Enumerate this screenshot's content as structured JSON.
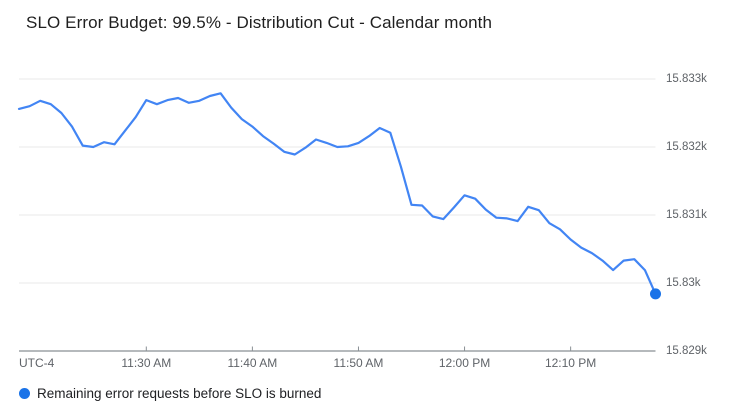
{
  "title": "SLO Error Budget: 99.5% - Distribution Cut - Calendar month",
  "legend": {
    "label": "Remaining error requests before SLO is burned",
    "dot_color": "#1a73e8"
  },
  "colors": {
    "line": "#4285f4",
    "endpoint_dot": "#1a73e8",
    "gridline": "#e9e9e9",
    "axis": "#898f94",
    "tick_label": "#5f6368",
    "title_text": "#1f1f1f"
  },
  "chart_data": {
    "type": "line",
    "title": "SLO Error Budget: 99.5% - Distribution Cut - Calendar month",
    "xlabel": "",
    "ylabel": "",
    "grid": true,
    "legend_position": "bottom-left",
    "x_axis": {
      "timezone_label": "UTC-4",
      "tick_labels": [
        "11:30 AM",
        "11:40 AM",
        "11:50 AM",
        "12:00 PM",
        "12:10 PM"
      ],
      "tick_minutes": [
        12,
        22,
        32,
        42,
        52
      ],
      "start_time": "11:18 AM",
      "end_time": "12:18 PM",
      "total_minutes": 60
    },
    "y_axis": {
      "tick_labels": [
        "15.833k",
        "15.832k",
        "15.831k",
        "15.83k",
        "15.829k"
      ],
      "tick_values": [
        15833,
        15832,
        15831,
        15830,
        15829
      ],
      "min": 15829,
      "max": 15833
    },
    "series": [
      {
        "name": "Remaining error requests before SLO is burned",
        "color": "#4285f4",
        "endpoint_color": "#1a73e8",
        "minutes": [
          0,
          1,
          2,
          3,
          4,
          5,
          6,
          7,
          8,
          9,
          10,
          11,
          12,
          13,
          14,
          15,
          16,
          17,
          18,
          19,
          20,
          21,
          22,
          23,
          24,
          25,
          26,
          27,
          28,
          29,
          30,
          31,
          32,
          33,
          34,
          35,
          36,
          37,
          38,
          39,
          40,
          41,
          42,
          43,
          44,
          45,
          46,
          47,
          48,
          49,
          50,
          51,
          52,
          53,
          54,
          55,
          56,
          57,
          58,
          59,
          60
        ],
        "values": [
          15832.56,
          15832.6,
          15832.68,
          15832.63,
          15832.5,
          15832.3,
          15832.02,
          15832.0,
          15832.07,
          15832.04,
          15832.24,
          15832.44,
          15832.69,
          15832.63,
          15832.69,
          15832.72,
          15832.65,
          15832.68,
          15832.75,
          15832.79,
          15832.58,
          15832.41,
          15832.3,
          15832.16,
          15832.05,
          15831.93,
          15831.89,
          15831.99,
          15832.11,
          15832.06,
          15832.0,
          15832.01,
          15832.06,
          15832.16,
          15832.28,
          15832.21,
          15831.71,
          15831.15,
          15831.14,
          15830.98,
          15830.94,
          15831.11,
          15831.29,
          15831.24,
          15831.08,
          15830.96,
          15830.95,
          15830.91,
          15831.12,
          15831.07,
          15830.88,
          15830.79,
          15830.64,
          15830.52,
          15830.44,
          15830.33,
          15830.19,
          15830.33,
          15830.35,
          15830.19,
          15829.84
        ]
      }
    ]
  }
}
